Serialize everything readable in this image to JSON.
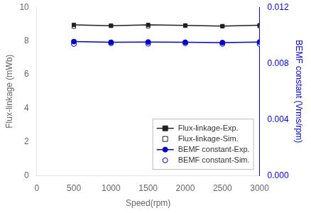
{
  "chart_data": {
    "type": "line",
    "x": [
      500,
      1000,
      1500,
      2000,
      2500,
      3000
    ],
    "xlabel": "Speed(rpm)",
    "ylabel": "Flux-linkage (mWb)",
    "y2label": "BEMF constant (Vrms/rpm)",
    "xlim": [
      0,
      3000
    ],
    "xticks": [
      0,
      500,
      1000,
      1500,
      2000,
      2500,
      3000
    ],
    "ylim": [
      0,
      10
    ],
    "yticks": [
      0,
      2,
      4,
      6,
      8,
      10
    ],
    "y2lim": [
      0.0,
      0.012
    ],
    "y2ticks": [
      {
        "value": 0,
        "label": "0.000"
      },
      0.004,
      0.008,
      0.012
    ],
    "grid": false,
    "legend": "lower right",
    "series": [
      {
        "name": "Flux-linkage-Exp.",
        "color": "#222222",
        "values": [
          8.95,
          8.9,
          8.95,
          8.92,
          8.88,
          8.93
        ],
        "marker": "square",
        "line_style": "solid"
      },
      {
        "name": "Flux-linkage-Sim.",
        "color": "#222222",
        "values": [
          8.85,
          8.9,
          8.87,
          8.9,
          8.87,
          8.88
        ],
        "marker": "open-square",
        "line_style": "none"
      },
      {
        "name": "BEMF constant-Exp.",
        "color": "#0000cc",
        "values": [
          0.00955,
          0.0095,
          0.00952,
          0.0095,
          0.00948,
          0.00952
        ],
        "marker": "circle",
        "line_style": "solid",
        "axis": "y2"
      },
      {
        "name": "BEMF constant-Sim.",
        "color": "#0000cc",
        "values": [
          0.00938,
          0.00943,
          0.0094,
          0.00943,
          0.00938,
          0.00938
        ],
        "marker": "open-circle",
        "line_style": "none",
        "axis": "y2"
      }
    ]
  }
}
